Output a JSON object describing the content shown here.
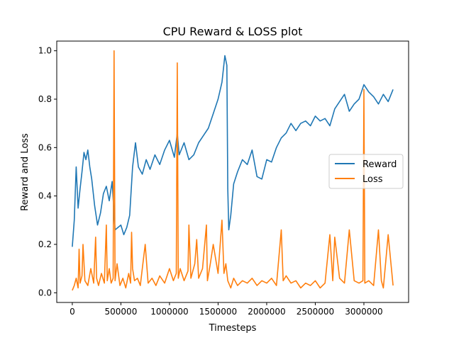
{
  "chart_data": {
    "type": "line",
    "title": "CPU Reward & LOSS plot",
    "xlabel": "Timesteps",
    "ylabel": "Reward and Loss",
    "xlim": [
      -160000,
      3460000
    ],
    "ylim": [
      -0.04,
      1.04
    ],
    "xticks": [
      0,
      500000,
      1000000,
      1500000,
      2000000,
      2500000,
      3000000
    ],
    "xtick_labels": [
      "0",
      "500000",
      "1000000",
      "1500000",
      "2000000",
      "2500000",
      "3000000"
    ],
    "yticks": [
      0.0,
      0.2,
      0.4,
      0.6,
      0.8,
      1.0
    ],
    "ytick_labels": [
      "0.0",
      "0.2",
      "0.4",
      "0.6",
      "0.8",
      "1.0"
    ],
    "grid": false,
    "legend": {
      "position": "center-right"
    },
    "series": [
      {
        "name": "Reward",
        "color": "#1f77b4",
        "x": [
          0,
          20000,
          40000,
          60000,
          80000,
          100000,
          120000,
          140000,
          160000,
          180000,
          200000,
          230000,
          260000,
          290000,
          320000,
          350000,
          380000,
          410000,
          440000,
          470000,
          500000,
          530000,
          560000,
          590000,
          620000,
          650000,
          680000,
          720000,
          760000,
          800000,
          850000,
          900000,
          950000,
          1000000,
          1050000,
          1080000,
          1100000,
          1150000,
          1200000,
          1250000,
          1300000,
          1350000,
          1400000,
          1450000,
          1500000,
          1540000,
          1570000,
          1590000,
          1600000,
          1610000,
          1630000,
          1660000,
          1700000,
          1750000,
          1800000,
          1850000,
          1900000,
          1950000,
          2000000,
          2050000,
          2100000,
          2150000,
          2200000,
          2250000,
          2300000,
          2350000,
          2400000,
          2450000,
          2500000,
          2550000,
          2600000,
          2650000,
          2700000,
          2750000,
          2800000,
          2850000,
          2900000,
          2950000,
          3000000,
          3050000,
          3100000,
          3150000,
          3200000,
          3250000,
          3300000
        ],
        "values": [
          0.19,
          0.3,
          0.52,
          0.35,
          0.43,
          0.5,
          0.58,
          0.55,
          0.59,
          0.52,
          0.47,
          0.36,
          0.28,
          0.33,
          0.41,
          0.44,
          0.38,
          0.46,
          0.26,
          0.27,
          0.28,
          0.24,
          0.27,
          0.32,
          0.52,
          0.62,
          0.52,
          0.49,
          0.55,
          0.51,
          0.57,
          0.53,
          0.59,
          0.63,
          0.56,
          0.66,
          0.57,
          0.62,
          0.55,
          0.57,
          0.62,
          0.65,
          0.68,
          0.74,
          0.8,
          0.87,
          0.98,
          0.94,
          0.43,
          0.26,
          0.32,
          0.45,
          0.5,
          0.55,
          0.53,
          0.59,
          0.48,
          0.47,
          0.55,
          0.54,
          0.6,
          0.64,
          0.66,
          0.7,
          0.67,
          0.7,
          0.71,
          0.69,
          0.73,
          0.71,
          0.72,
          0.69,
          0.76,
          0.79,
          0.82,
          0.75,
          0.78,
          0.8,
          0.86,
          0.83,
          0.81,
          0.78,
          0.82,
          0.79,
          0.84
        ]
      },
      {
        "name": "Loss",
        "color": "#ff7f0e",
        "x": [
          0,
          20000,
          40000,
          60000,
          70000,
          80000,
          100000,
          110000,
          130000,
          160000,
          190000,
          220000,
          240000,
          250000,
          270000,
          300000,
          330000,
          350000,
          360000,
          380000,
          400000,
          420000,
          430000,
          440000,
          460000,
          490000,
          520000,
          550000,
          580000,
          600000,
          610000,
          620000,
          640000,
          670000,
          700000,
          720000,
          750000,
          780000,
          820000,
          860000,
          900000,
          950000,
          1000000,
          1040000,
          1070000,
          1080000,
          1090000,
          1110000,
          1150000,
          1190000,
          1200000,
          1220000,
          1260000,
          1280000,
          1300000,
          1340000,
          1380000,
          1390000,
          1420000,
          1450000,
          1500000,
          1540000,
          1560000,
          1580000,
          1600000,
          1630000,
          1660000,
          1700000,
          1750000,
          1800000,
          1850000,
          1900000,
          1950000,
          2000000,
          2050000,
          2100000,
          2150000,
          2170000,
          2200000,
          2250000,
          2300000,
          2350000,
          2400000,
          2450000,
          2500000,
          2550000,
          2600000,
          2650000,
          2680000,
          2700000,
          2750000,
          2800000,
          2850000,
          2900000,
          2950000,
          2990000,
          3000000,
          3010000,
          3050000,
          3100000,
          3150000,
          3180000,
          3200000,
          3250000,
          3300000
        ],
        "values": [
          0.01,
          0.03,
          0.06,
          0.02,
          0.18,
          0.04,
          0.07,
          0.2,
          0.05,
          0.03,
          0.1,
          0.04,
          0.23,
          0.06,
          0.03,
          0.08,
          0.04,
          0.28,
          0.05,
          0.1,
          0.04,
          0.06,
          1.0,
          0.05,
          0.12,
          0.03,
          0.06,
          0.02,
          0.08,
          0.04,
          0.25,
          0.1,
          0.05,
          0.06,
          0.03,
          0.1,
          0.2,
          0.04,
          0.06,
          0.03,
          0.07,
          0.04,
          0.1,
          0.05,
          0.08,
          0.95,
          0.06,
          0.1,
          0.05,
          0.09,
          0.28,
          0.06,
          0.12,
          0.22,
          0.06,
          0.1,
          0.28,
          0.05,
          0.12,
          0.2,
          0.08,
          0.3,
          0.08,
          0.12,
          0.05,
          0.02,
          0.06,
          0.03,
          0.05,
          0.04,
          0.06,
          0.03,
          0.05,
          0.04,
          0.06,
          0.03,
          0.26,
          0.05,
          0.07,
          0.04,
          0.05,
          0.02,
          0.04,
          0.03,
          0.05,
          0.02,
          0.04,
          0.24,
          0.05,
          0.23,
          0.06,
          0.04,
          0.26,
          0.05,
          0.04,
          0.05,
          0.84,
          0.04,
          0.05,
          0.03,
          0.26,
          0.05,
          0.02,
          0.24,
          0.03
        ]
      }
    ]
  }
}
